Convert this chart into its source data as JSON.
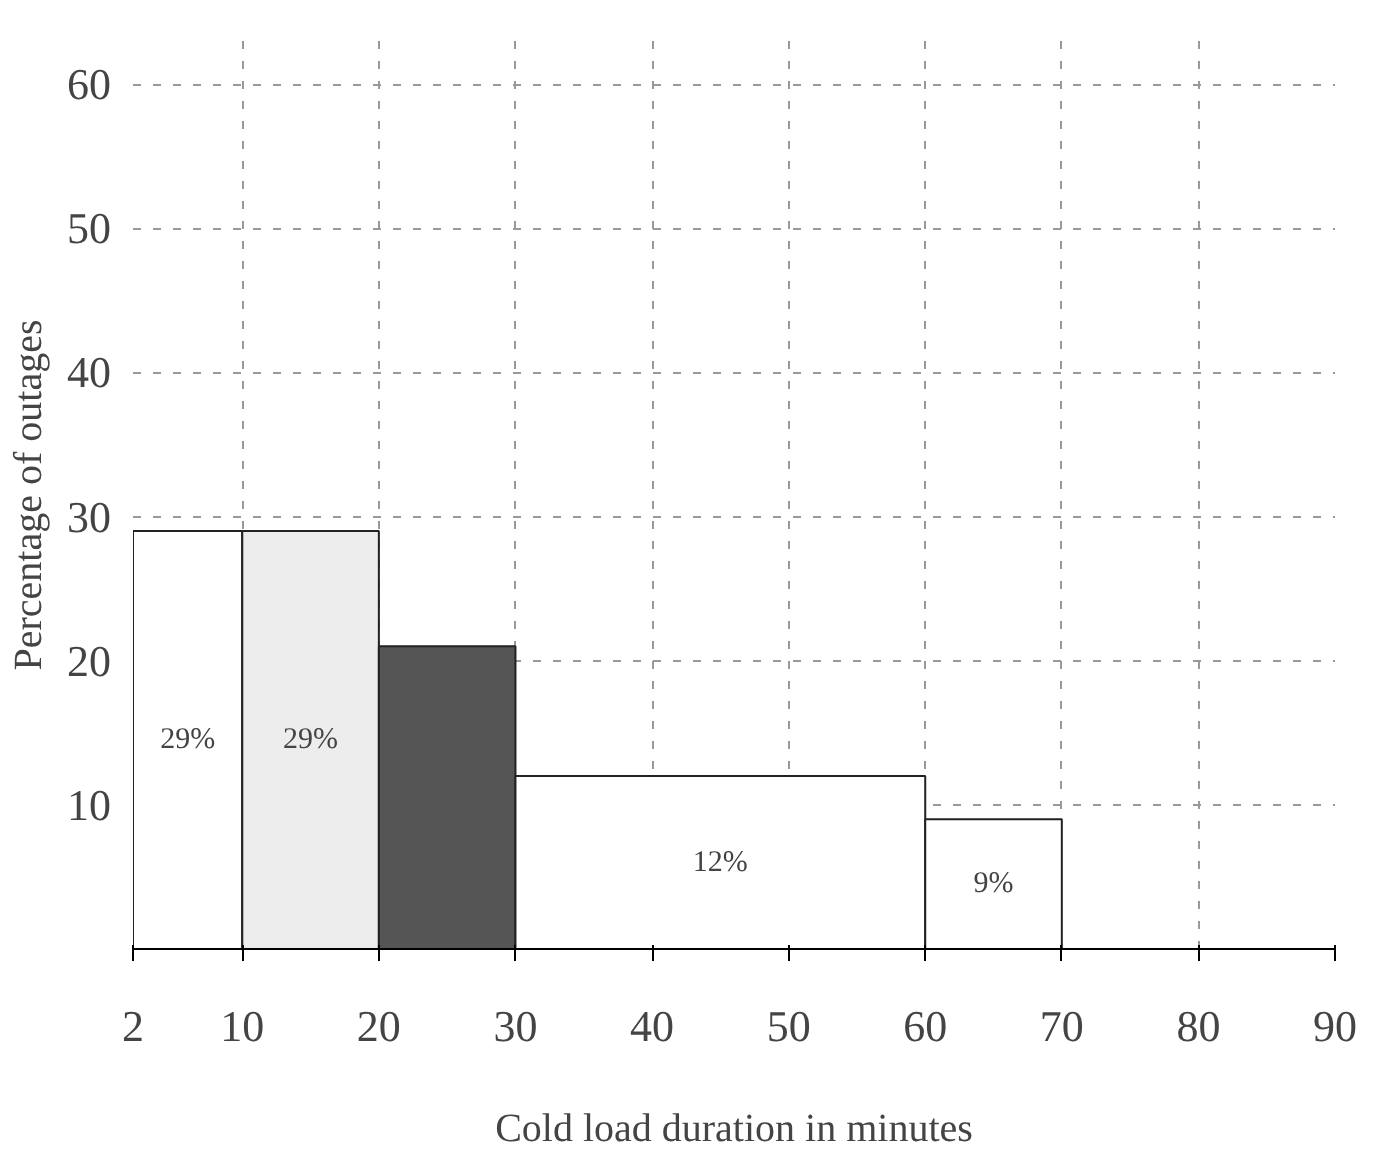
{
  "chart_data": {
    "type": "histogram",
    "xlabel": "Cold load duration in minutes",
    "ylabel": "Percentage of outages",
    "bins": [
      2,
      10,
      20,
      30,
      60,
      70
    ],
    "values": [
      29,
      29,
      21,
      12,
      9
    ],
    "colors": [
      "#ffffff",
      "#ededed",
      "#555555",
      "#ffffff",
      "#ffffff"
    ],
    "value_labels": [
      "29%",
      "29%",
      null,
      "12%",
      "9%"
    ],
    "xlim": [
      2,
      90
    ],
    "xticks": [
      2,
      10,
      20,
      30,
      40,
      50,
      60,
      70,
      80,
      90
    ],
    "ylim": [
      0,
      63
    ],
    "yticks": [
      10,
      20,
      30,
      40,
      50,
      60
    ],
    "grid": true
  }
}
